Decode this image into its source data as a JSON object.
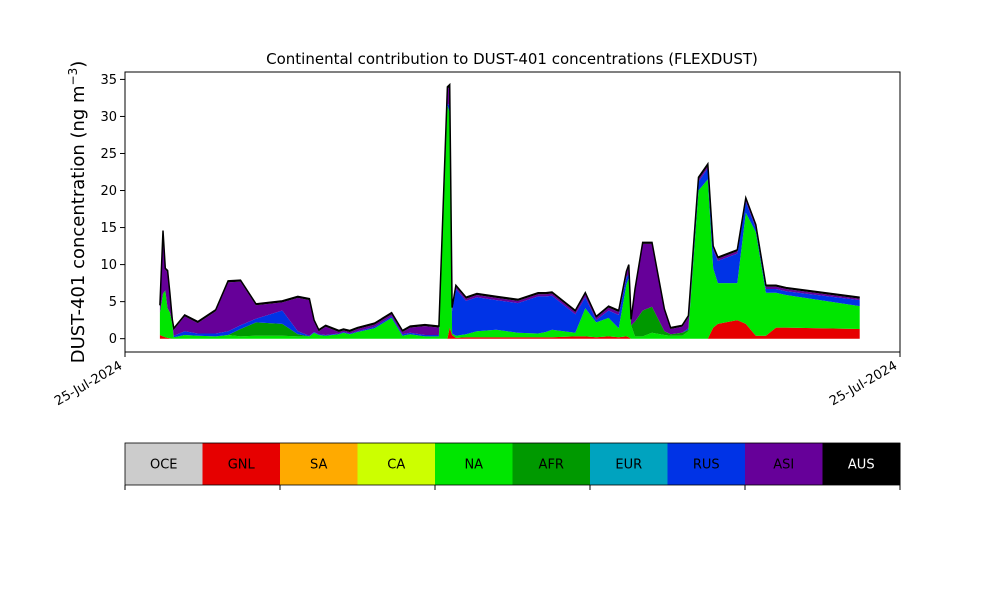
{
  "chart_data": {
    "type": "area",
    "title": "Continental contribution to DUST-401 concentrations (FLEXDUST)",
    "ylabel_main": "DUST-401 concentration (ng m",
    "ylabel_sup": "−3",
    "ylabel_end": ")",
    "xlabel": "",
    "ylim": [
      -1.8,
      36
    ],
    "yticks": [
      "0",
      "5",
      "10",
      "15",
      "20",
      "25",
      "30",
      "35"
    ],
    "xticks": [
      "25-Jul-2024",
      "25-Jul-2024"
    ],
    "grid": false,
    "stacked": true,
    "x": [
      0.045,
      0.049,
      0.052,
      0.055,
      0.058,
      0.061,
      0.063,
      0.077,
      0.094,
      0.117,
      0.133,
      0.149,
      0.169,
      0.203,
      0.223,
      0.238,
      0.244,
      0.25,
      0.259,
      0.276,
      0.282,
      0.29,
      0.3,
      0.322,
      0.344,
      0.358,
      0.368,
      0.387,
      0.405,
      0.416,
      0.419,
      0.422,
      0.427,
      0.44,
      0.454,
      0.479,
      0.507,
      0.533,
      0.543,
      0.551,
      0.581,
      0.594,
      0.608,
      0.624,
      0.637,
      0.647,
      0.65,
      0.653,
      0.658,
      0.668,
      0.68,
      0.696,
      0.704,
      0.719,
      0.727,
      0.74,
      0.752,
      0.759,
      0.765,
      0.79,
      0.801,
      0.814,
      0.827,
      0.84,
      0.853,
      0.948
    ],
    "series": [
      {
        "name": "OCE",
        "values": [
          0,
          0,
          0,
          0,
          0,
          0,
          0,
          0,
          0,
          0,
          0,
          0,
          0,
          0,
          0,
          0,
          0,
          0,
          0,
          0,
          0,
          0,
          0,
          0,
          0,
          0,
          0,
          0,
          0,
          0,
          0,
          0,
          0,
          0,
          0,
          0,
          0,
          0,
          0,
          0,
          0,
          0,
          0,
          0,
          0,
          0,
          0,
          0,
          0,
          0,
          0,
          0,
          0,
          0,
          0,
          0,
          0,
          0,
          0,
          0,
          0,
          0,
          0,
          0,
          0,
          0
        ]
      },
      {
        "name": "GNL",
        "values": [
          0.5,
          0.3,
          0.2,
          0.1,
          0.05,
          0,
          0,
          0,
          0,
          0,
          0,
          0,
          0,
          0,
          0,
          0,
          0,
          0,
          0,
          0,
          0,
          0,
          0,
          0,
          0,
          0,
          0,
          0,
          0,
          0,
          1.5,
          0.5,
          0.1,
          0.2,
          0.2,
          0.2,
          0.2,
          0.2,
          0.2,
          0.2,
          0.3,
          0.3,
          0.2,
          0.3,
          0.2,
          0.3,
          0.2,
          0,
          0,
          0,
          0,
          0,
          0,
          0,
          0,
          0,
          0,
          1.5,
          2.0,
          2.5,
          2.0,
          0.4,
          0.4,
          1.5,
          1.5,
          1.3
        ]
      },
      {
        "name": "SA",
        "values": [
          0,
          0,
          0,
          0,
          0,
          0,
          0,
          0,
          0,
          0,
          0,
          0,
          0,
          0,
          0,
          0,
          0,
          0,
          0,
          0,
          0,
          0,
          0,
          0,
          0,
          0,
          0,
          0,
          0,
          0,
          0,
          0,
          0,
          0,
          0,
          0,
          0,
          0,
          0,
          0,
          0,
          0,
          0,
          0,
          0,
          0,
          0,
          0,
          0,
          0,
          0,
          0,
          0,
          0,
          0,
          0,
          0,
          0,
          0,
          0,
          0,
          0,
          0,
          0,
          0,
          0
        ]
      },
      {
        "name": "CA",
        "values": [
          0,
          0,
          0,
          0,
          0,
          0,
          0,
          0,
          0,
          0,
          0,
          0,
          0,
          0,
          0,
          0,
          0,
          0,
          0,
          0,
          0,
          0,
          0,
          0,
          0,
          0,
          0,
          0,
          0,
          0,
          0,
          0,
          0,
          0,
          0,
          0,
          0,
          0,
          0,
          0,
          0,
          0,
          0,
          0,
          0,
          0,
          0,
          0,
          0,
          0,
          0,
          0,
          0,
          0,
          0,
          0,
          0,
          0,
          0,
          0,
          0,
          0,
          0,
          0,
          0,
          0
        ]
      },
      {
        "name": "NA",
        "values": [
          3.0,
          5.8,
          6.3,
          4.0,
          3.5,
          2.0,
          0.2,
          0.5,
          0.4,
          0.3,
          0.5,
          0.3,
          0.4,
          0.4,
          0.3,
          0.3,
          0.8,
          0.5,
          0.4,
          0.6,
          0.8,
          0.6,
          0.9,
          1.4,
          2.8,
          0.4,
          0.6,
          0.3,
          0.3,
          31.5,
          29.0,
          0.2,
          0.3,
          0.4,
          0.8,
          1.0,
          0.6,
          0.5,
          0.7,
          1.0,
          0.5,
          3.8,
          2.0,
          2.5,
          1.2,
          7.0,
          8.0,
          1.8,
          0.3,
          0.3,
          0.8,
          0.5,
          0.4,
          0.4,
          1.0,
          20.0,
          21.5,
          8.0,
          5.5,
          5.0,
          15.0,
          14.0,
          5.8,
          4.7,
          4.4,
          3.1
        ]
      },
      {
        "name": "AFR",
        "values": [
          0,
          0,
          0,
          0,
          0,
          0,
          0,
          0,
          0,
          0,
          0,
          1.0,
          1.8,
          1.6,
          0.3,
          0,
          0,
          0,
          0,
          0,
          0,
          0,
          0,
          0,
          0,
          0,
          0,
          0,
          0,
          0,
          0,
          0,
          0,
          0,
          0,
          0,
          0,
          0,
          0,
          0,
          0,
          0,
          0,
          0,
          0,
          0,
          0,
          0,
          2.0,
          3.5,
          3.5,
          0.5,
          0.2,
          0.4,
          0.2,
          0,
          0,
          0,
          0,
          0,
          0,
          0,
          0,
          0,
          0,
          0
        ]
      },
      {
        "name": "EUR",
        "values": [
          0,
          0,
          0,
          0,
          0,
          0,
          0,
          0,
          0,
          0,
          0,
          0,
          0,
          0,
          0,
          0,
          0,
          0,
          0,
          0,
          0,
          0,
          0,
          0,
          0,
          0,
          0,
          0,
          0,
          0,
          0,
          0,
          0,
          0,
          0,
          0,
          0,
          0,
          0,
          0,
          0,
          0,
          0,
          0,
          0,
          0,
          0,
          0,
          0,
          0,
          0,
          0,
          0,
          0,
          0,
          0,
          0,
          0,
          0,
          0,
          0,
          0,
          0,
          0,
          0,
          0
        ]
      },
      {
        "name": "RUS",
        "values": [
          0,
          0,
          0,
          0,
          0,
          0,
          0.2,
          0.5,
          0.3,
          0.4,
          0.5,
          0.5,
          0.5,
          1.8,
          0.4,
          0.1,
          0.1,
          0.1,
          0.1,
          0.1,
          0.1,
          0.1,
          0.1,
          0.2,
          0.2,
          0.2,
          0.2,
          0.2,
          0.2,
          0.2,
          1.0,
          3.0,
          6.3,
          4.5,
          4.6,
          4.0,
          4.0,
          5.0,
          4.8,
          4.6,
          2.5,
          1.5,
          0.3,
          1.0,
          1.8,
          1.0,
          0.5,
          0,
          0,
          0,
          0,
          0,
          0,
          0,
          0.2,
          1.2,
          1.5,
          2.5,
          3.0,
          4.0,
          1.5,
          0.5,
          0.5,
          0.5,
          0.5,
          0.8
        ]
      },
      {
        "name": "ASI",
        "values": [
          0.8,
          8.3,
          2.8,
          4.9,
          2.4,
          0.4,
          0.8,
          2.0,
          1.4,
          3.0,
          6.6,
          5.9,
          1.8,
          1.1,
          4.5,
          4.8,
          1.4,
          0.4,
          1.1,
          0.2,
          0.2,
          0.2,
          0.3,
          0.3,
          0.3,
          0.3,
          0.7,
          1.2,
          1.0,
          2.0,
          2.5,
          0.3,
          0.3,
          0.3,
          0.3,
          0.3,
          0.3,
          0.3,
          0.3,
          0.3,
          0.3,
          0.4,
          0.3,
          0.4,
          0.4,
          0.6,
          1.1,
          0.6,
          4.2,
          9.0,
          8.5,
          2.8,
          0.7,
          0.8,
          1.5,
          0.3,
          0.3,
          0.3,
          0.3,
          0.3,
          0.3,
          0.3,
          0.3,
          0.3,
          0.3,
          0.2
        ]
      },
      {
        "name": "AUS",
        "values": [
          0.2,
          0.2,
          0.2,
          0.2,
          0.2,
          0.2,
          0.2,
          0.2,
          0.2,
          0.2,
          0.2,
          0.2,
          0.2,
          0.2,
          0.2,
          0.2,
          0.2,
          0.2,
          0.2,
          0.2,
          0.2,
          0.2,
          0.2,
          0.2,
          0.2,
          0.2,
          0.2,
          0.2,
          0.2,
          0.3,
          0.3,
          0.2,
          0.2,
          0.2,
          0.2,
          0.2,
          0.2,
          0.2,
          0.2,
          0.2,
          0.2,
          0.2,
          0.2,
          0.2,
          0.2,
          0.2,
          0.2,
          0.2,
          0.2,
          0.2,
          0.2,
          0.2,
          0.2,
          0.2,
          0.2,
          0.3,
          0.3,
          0.2,
          0.2,
          0.2,
          0.2,
          0.2,
          0.2,
          0.2,
          0.2,
          0.2
        ]
      }
    ]
  },
  "legend": [
    {
      "name": "OCE",
      "color": "#cccccc",
      "text_color": "#000000"
    },
    {
      "name": "GNL",
      "color": "#e60000",
      "text_color": "#000000"
    },
    {
      "name": "SA",
      "color": "#ffaa00",
      "text_color": "#000000"
    },
    {
      "name": "CA",
      "color": "#ccff00",
      "text_color": "#000000"
    },
    {
      "name": "NA",
      "color": "#00e600",
      "text_color": "#000000"
    },
    {
      "name": "AFR",
      "color": "#009900",
      "text_color": "#000000"
    },
    {
      "name": "EUR",
      "color": "#00a3bf",
      "text_color": "#000000"
    },
    {
      "name": "RUS",
      "color": "#0033e6",
      "text_color": "#000000"
    },
    {
      "name": "ASI",
      "color": "#660099",
      "text_color": "#000000"
    },
    {
      "name": "AUS",
      "color": "#000000",
      "text_color": "#ffffff"
    }
  ]
}
